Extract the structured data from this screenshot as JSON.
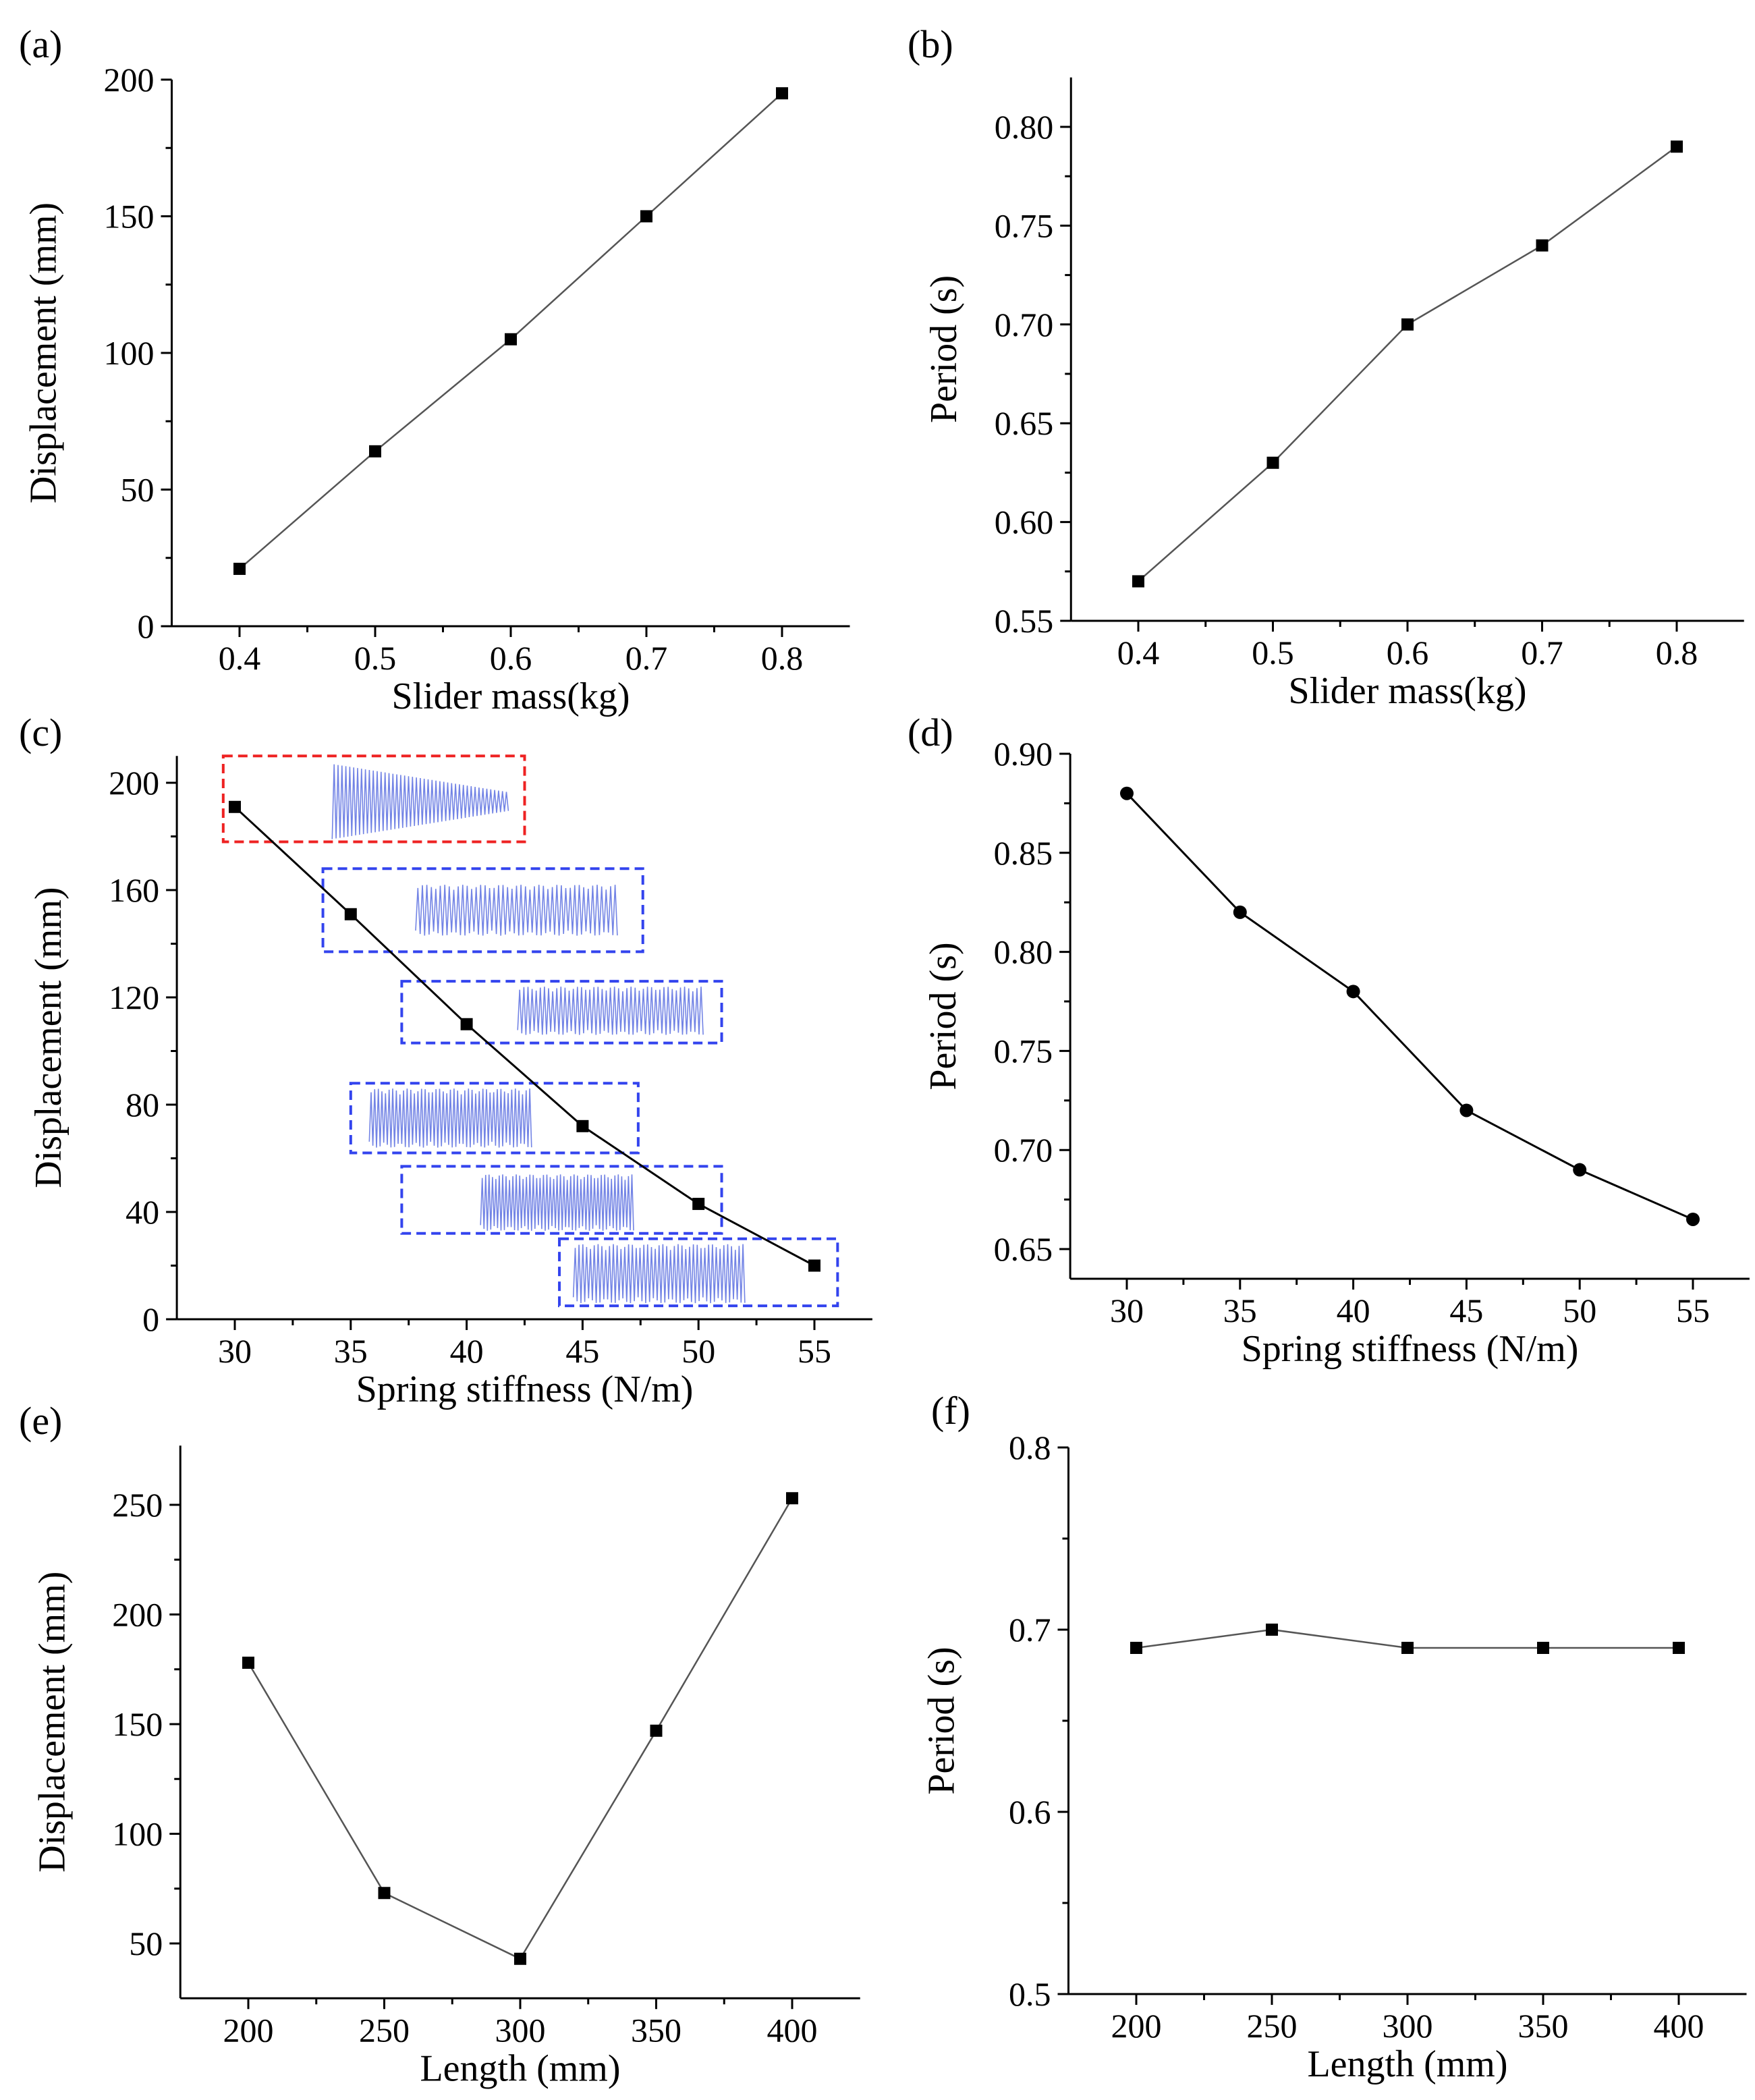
{
  "figure": {
    "description_panels": [
      "a",
      "b",
      "c",
      "d",
      "e",
      "f"
    ]
  },
  "chart_data": [
    {
      "id": "a",
      "panel_label": "(a)",
      "type": "line",
      "marker": "square",
      "x": [
        0.4,
        0.5,
        0.6,
        0.7,
        0.8
      ],
      "y": [
        21,
        64,
        105,
        150,
        195
      ],
      "xlabel": "Slider mass(kg)",
      "ylabel": "Displacement (mm)",
      "xlim": [
        0.35,
        0.85
      ],
      "ylim": [
        0,
        200
      ],
      "xticks": [
        0.4,
        0.5,
        0.6,
        0.7,
        0.8
      ],
      "xtick_labels": [
        "0.4",
        "0.5",
        "0.6",
        "0.7",
        "0.8"
      ],
      "yticks": [
        0,
        50,
        100,
        150,
        200
      ],
      "ytick_labels": [
        "0",
        "50",
        "100",
        "150",
        "200"
      ],
      "line_color": "#555555",
      "grid": false
    },
    {
      "id": "b",
      "panel_label": "(b)",
      "type": "line",
      "marker": "square",
      "x": [
        0.4,
        0.5,
        0.6,
        0.7,
        0.8
      ],
      "y": [
        0.57,
        0.63,
        0.7,
        0.74,
        0.79
      ],
      "xlabel": "Slider mass(kg)",
      "ylabel": "Period (s)",
      "xlim": [
        0.35,
        0.85
      ],
      "ylim": [
        0.55,
        0.825
      ],
      "xticks": [
        0.4,
        0.5,
        0.6,
        0.7,
        0.8
      ],
      "xtick_labels": [
        "0.4",
        "0.5",
        "0.6",
        "0.7",
        "0.8"
      ],
      "yticks": [
        0.55,
        0.6,
        0.65,
        0.7,
        0.75,
        0.8
      ],
      "ytick_labels": [
        "0.55",
        "0.60",
        "0.65",
        "0.70",
        "0.75",
        "0.80"
      ],
      "line_color": "#555555",
      "grid": false
    },
    {
      "id": "c",
      "panel_label": "(c)",
      "type": "line",
      "marker": "square",
      "x": [
        30,
        35,
        40,
        45,
        50,
        55
      ],
      "y": [
        191,
        151,
        110,
        72,
        43,
        20
      ],
      "xlabel": "Spring stiffness (N/m)",
      "ylabel": "Displacement (mm)",
      "xlim": [
        27.5,
        57.5
      ],
      "ylim": [
        0,
        210
      ],
      "xticks": [
        30,
        35,
        40,
        45,
        50,
        55
      ],
      "xtick_labels": [
        "30",
        "35",
        "40",
        "45",
        "50",
        "55"
      ],
      "yticks": [
        0,
        40,
        80,
        120,
        160,
        200
      ],
      "ytick_labels": [
        "0",
        "40",
        "80",
        "120",
        "160",
        "200"
      ],
      "line_color": "#000000",
      "grid": false,
      "insets": [
        {
          "box_x": [
            29.5,
            42.5
          ],
          "box_y": [
            178,
            210
          ],
          "wave_x": [
            34.2,
            41.8
          ],
          "wave_y": [
            179,
            207
          ],
          "color": "#ee2222",
          "decay": true
        },
        {
          "box_x": [
            33.8,
            47.6
          ],
          "box_y": [
            137,
            168
          ],
          "wave_x": [
            37.8,
            46.5
          ],
          "wave_y": [
            143,
            162
          ],
          "color": "#3344ee",
          "decay": false
        },
        {
          "box_x": [
            37.2,
            51.0
          ],
          "box_y": [
            103,
            126
          ],
          "wave_x": [
            42.2,
            50.2
          ],
          "wave_y": [
            106,
            124
          ],
          "color": "#3344ee",
          "decay": false
        },
        {
          "box_x": [
            35.0,
            47.4
          ],
          "box_y": [
            62,
            88
          ],
          "wave_x": [
            35.8,
            42.8
          ],
          "wave_y": [
            64,
            86
          ],
          "color": "#3344ee",
          "decay": false
        },
        {
          "box_x": [
            37.2,
            51.0
          ],
          "box_y": [
            32,
            57
          ],
          "wave_x": [
            40.6,
            47.2
          ],
          "wave_y": [
            33,
            54
          ],
          "color": "#3344ee",
          "decay": false
        },
        {
          "box_x": [
            44.0,
            56.0
          ],
          "box_y": [
            5,
            30
          ],
          "wave_x": [
            44.6,
            52.0
          ],
          "wave_y": [
            6,
            28
          ],
          "color": "#3344ee",
          "decay": false
        }
      ]
    },
    {
      "id": "d",
      "panel_label": "(d)",
      "type": "line",
      "marker": "circle",
      "x": [
        30,
        35,
        40,
        45,
        50,
        55
      ],
      "y": [
        0.88,
        0.82,
        0.78,
        0.72,
        0.69,
        0.665
      ],
      "xlabel": "Spring stiffness (N/m)",
      "ylabel": "Period (s)",
      "xlim": [
        27.5,
        57.5
      ],
      "ylim": [
        0.635,
        0.9
      ],
      "xticks": [
        30,
        35,
        40,
        45,
        50,
        55
      ],
      "xtick_labels": [
        "30",
        "35",
        "40",
        "45",
        "50",
        "55"
      ],
      "yticks": [
        0.65,
        0.7,
        0.75,
        0.8,
        0.85,
        0.9
      ],
      "ytick_labels": [
        "0.65",
        "0.70",
        "0.75",
        "0.80",
        "0.85",
        "0.90"
      ],
      "line_color": "#000000",
      "grid": false
    },
    {
      "id": "e",
      "panel_label": "(e)",
      "type": "line",
      "marker": "square",
      "x": [
        200,
        250,
        300,
        350,
        400
      ],
      "y": [
        178,
        73,
        43,
        147,
        253
      ],
      "xlabel": "Length (mm)",
      "ylabel": "Displacement (mm)",
      "xlim": [
        175,
        425
      ],
      "ylim": [
        25,
        277
      ],
      "xticks": [
        200,
        250,
        300,
        350,
        400
      ],
      "xtick_labels": [
        "200",
        "250",
        "300",
        "350",
        "400"
      ],
      "yticks": [
        50,
        100,
        150,
        200,
        250
      ],
      "ytick_labels": [
        "50",
        "100",
        "150",
        "200",
        "250"
      ],
      "line_color": "#555555",
      "grid": false
    },
    {
      "id": "f",
      "panel_label": "(f)",
      "type": "line",
      "marker": "square",
      "x": [
        200,
        250,
        300,
        350,
        400
      ],
      "y": [
        0.69,
        0.7,
        0.69,
        0.69,
        0.69
      ],
      "xlabel": "Length (mm)",
      "ylabel": "Period (s)",
      "xlim": [
        175,
        425
      ],
      "ylim": [
        0.5,
        0.8
      ],
      "xticks": [
        200,
        250,
        300,
        350,
        400
      ],
      "xtick_labels": [
        "200",
        "250",
        "300",
        "350",
        "400"
      ],
      "yticks": [
        0.5,
        0.6,
        0.7,
        0.8
      ],
      "ytick_labels": [
        "0.5",
        "0.6",
        "0.7",
        "0.8"
      ],
      "line_color": "#555555",
      "grid": false
    }
  ]
}
